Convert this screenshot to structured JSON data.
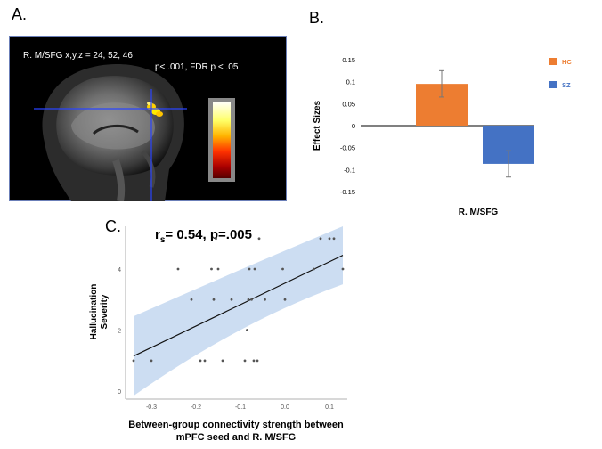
{
  "panels": {
    "a": {
      "label": "A.",
      "region_label": "R. M/SFG  x,y,z = 24, 52, 46",
      "threshold_label": "p< .001, FDR p < .05",
      "colorbar_colors": [
        "#ffffff",
        "#ffff66",
        "#ffb300",
        "#ff3300",
        "#aa0000",
        "#550000"
      ]
    },
    "b": {
      "label": "B."
    },
    "c": {
      "label": "C."
    }
  },
  "chart_data": [
    {
      "type": "bar",
      "panel": "B",
      "categories": [
        "R. M/SFG"
      ],
      "series": [
        {
          "name": "HC",
          "values": [
            0.095
          ],
          "error": [
            0.03
          ],
          "color": "#ed7d31"
        },
        {
          "name": "SZ",
          "values": [
            -0.087
          ],
          "error": [
            0.03
          ],
          "color": "#4472c4"
        }
      ],
      "ylabel": "Effect Sizes",
      "xlabel": "R. M/SFG",
      "ylim": [
        -0.15,
        0.15
      ],
      "yticks": [
        "0.15",
        "0.1",
        "0.05",
        "0",
        "-0.05",
        "-0.1",
        "-0.15"
      ],
      "ytick_values": [
        0.15,
        0.1,
        0.05,
        0,
        -0.05,
        -0.1,
        -0.15
      ],
      "legend_position": "right"
    },
    {
      "type": "scatter",
      "panel": "C",
      "title_main": "r",
      "title_sub": "s",
      "title_rest": "= 0.54, p=.005",
      "xlabel_line1": "Between-group connectivity strength between",
      "xlabel_line2": "mPFC seed and R. M/SFG",
      "ylabel_line1": "Hallucination",
      "ylabel_line2": "Severity",
      "xlim": [
        -0.35,
        0.14
      ],
      "ylim": [
        -0.2,
        5.4
      ],
      "xticks": [
        "-0.3",
        "-0.2",
        "-0.1",
        "0.0",
        "0.1"
      ],
      "xtick_values": [
        -0.3,
        -0.2,
        -0.1,
        0.0,
        0.1
      ],
      "yticks": [
        "0",
        "2",
        "4"
      ],
      "ytick_values": [
        0,
        2,
        4
      ],
      "x": [
        -0.34,
        -0.3,
        -0.24,
        -0.21,
        -0.19,
        -0.18,
        -0.165,
        -0.16,
        -0.155,
        -0.15,
        -0.14,
        -0.12,
        -0.09,
        -0.085,
        -0.082,
        -0.08,
        -0.075,
        -0.07,
        -0.068,
        -0.062,
        -0.058,
        -0.045,
        -0.005,
        0.0,
        0.065,
        0.08,
        0.1,
        0.11,
        0.13
      ],
      "y": [
        1,
        1,
        4,
        3,
        1,
        1,
        4,
        3,
        5,
        4,
        1,
        3,
        1,
        2,
        3,
        4,
        3,
        1,
        4,
        1,
        5,
        3,
        4,
        3,
        4,
        5,
        5,
        5,
        4
      ],
      "fit": {
        "x": [
          -0.34,
          0.13
        ],
        "y": [
          1.15,
          4.45
        ]
      },
      "ci_upper": [
        2.45,
        4.0,
        5.4
      ],
      "ci_lower": [
        -0.15,
        2.3,
        3.5
      ],
      "ci_x": [
        -0.34,
        -0.1,
        0.13
      ],
      "ci_color": "#c6d9f1"
    }
  ]
}
